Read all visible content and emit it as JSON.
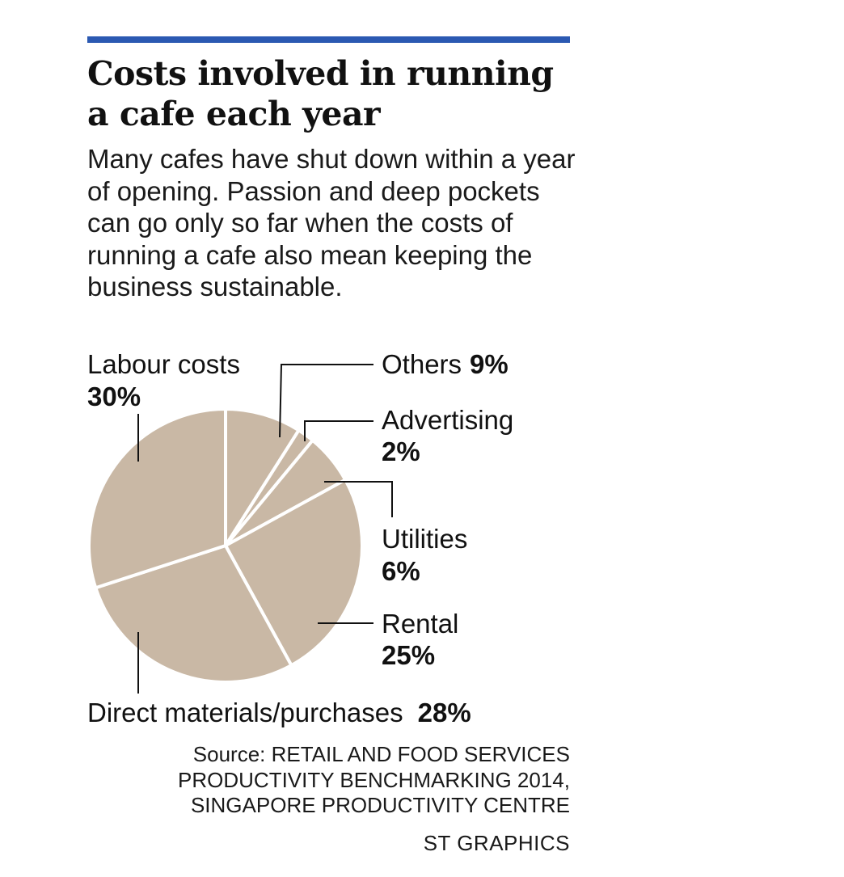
{
  "header": {
    "title": "Costs involved in running a cafe each year",
    "subtitle": "Many cafes have shut down within a year of opening. Passion and deep pockets can go only so far when the costs of running a cafe also mean keeping the business sustainable."
  },
  "chart_data": {
    "type": "pie",
    "title": "Costs involved in running a cafe each year",
    "slices": [
      {
        "label": "Others",
        "value": 9,
        "value_label": "9%"
      },
      {
        "label": "Advertising",
        "value": 2,
        "value_label": "2%"
      },
      {
        "label": "Utilities",
        "value": 6,
        "value_label": "6%"
      },
      {
        "label": "Rental",
        "value": 25,
        "value_label": "25%"
      },
      {
        "label": "Direct materials/purchases",
        "value": 28,
        "value_label": "28%"
      },
      {
        "label": "Labour costs",
        "value": 30,
        "value_label": "30%"
      }
    ],
    "colors": {
      "slice": "#c9b8a5",
      "separator": "#ffffff",
      "leader": "#111111",
      "accent_rule": "#2b59b2"
    },
    "start": "12 o'clock, clockwise"
  },
  "footer": {
    "source_lines": [
      "Source: RETAIL AND FOOD SERVICES",
      "PRODUCTIVITY BENCHMARKING 2014,",
      "SINGAPORE PRODUCTIVITY CENTRE"
    ],
    "credit": "ST GRAPHICS"
  }
}
